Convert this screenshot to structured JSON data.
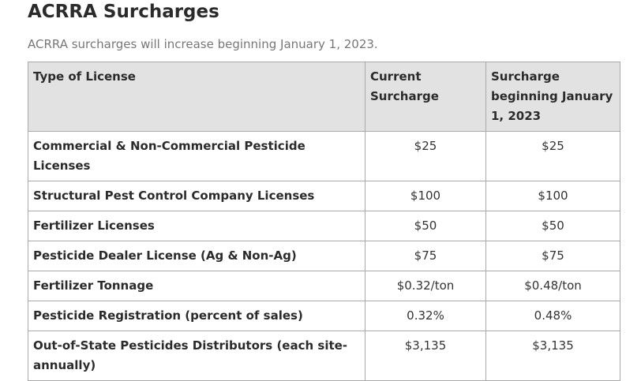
{
  "page": {
    "title": "ACRRA Surcharges",
    "intro": "ACRRA surcharges will increase beginning January 1, 2023."
  },
  "table": {
    "headers": [
      "Type of License",
      "Current Surcharge",
      "Surcharge beginning January 1, 2023"
    ],
    "rows": [
      {
        "type": "Commercial & Non-Commercial  Pesticide Licenses",
        "current": "$25",
        "new": "$25"
      },
      {
        "type": "Structural Pest Control Company Licenses",
        "current": "$100",
        "new": "$100"
      },
      {
        "type": "Fertilizer Licenses",
        "current": "$50",
        "new": "$50"
      },
      {
        "type": "Pesticide Dealer License (Ag & Non-Ag)",
        "current": "$75",
        "new": "$75"
      },
      {
        "type": "Fertilizer Tonnage",
        "current": "$0.32/ton",
        "new": "$0.48/ton"
      },
      {
        "type": "Pesticide Registration (percent of sales)",
        "current": "0.32%",
        "new": "0.48%"
      },
      {
        "type": "Out-of-State Pesticides Distributors (each site-annually)",
        "current": "$3,135",
        "new": "$3,135"
      }
    ]
  }
}
